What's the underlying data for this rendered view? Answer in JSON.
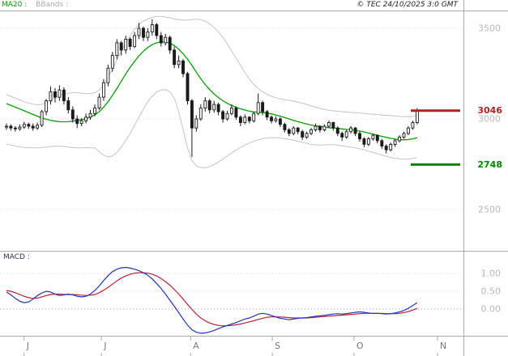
{
  "header": {
    "ma_label": "MA20 :",
    "bbands_label": "BBands :",
    "copyright": "© TEC 24/10/2025 3:0 GMT"
  },
  "macd_panel_label": "MACD :",
  "colors": {
    "ma20": "#00A000",
    "bband": "#C4C4C4",
    "candle": "#1A1A1A",
    "macd_line": "#2233BB",
    "macd_signal": "#BB2233",
    "grid": "#DDDDDD",
    "grid_zero": "#9999BB",
    "border": "#AAAAAA",
    "tick_label": "#B8B8B8",
    "month_label": "#777777"
  },
  "chart_data": {
    "type": "candlestick",
    "title": "",
    "legend": [
      "MA20",
      "BBands",
      "MACD"
    ],
    "price_axis": {
      "ticks": [
        {
          "label": "3500",
          "value": 3500
        },
        {
          "label": "3000",
          "value": 3000
        },
        {
          "label": "2500",
          "value": 2500
        }
      ],
      "range": [
        2270,
        3595
      ]
    },
    "macd_axis": {
      "ticks": [
        {
          "label": "1.00",
          "value": 1.0
        },
        {
          "label": "0.50",
          "value": 0.5
        },
        {
          "label": "0.00",
          "value": 0.0
        }
      ],
      "range": [
        -0.75,
        1.65
      ]
    },
    "x_axis": {
      "month_labels": [
        {
          "label": "J",
          "index": 4
        },
        {
          "label": "J",
          "index": 21.5
        },
        {
          "label": "A",
          "index": 41.7
        },
        {
          "label": "S",
          "index": 60.2
        },
        {
          "label": "O",
          "index": 78.7
        },
        {
          "label": "N",
          "index": 97.6
        }
      ]
    },
    "levels": [
      {
        "label": "3046",
        "value": 3046,
        "color": "#B22222"
      },
      {
        "label": "2748",
        "value": 2748,
        "color": "#008800"
      }
    ],
    "series": {
      "candles_ohlc": [
        [
          2955,
          2975,
          2940,
          2960
        ],
        [
          2960,
          2970,
          2935,
          2950
        ],
        [
          2950,
          2960,
          2930,
          2945
        ],
        [
          2945,
          2970,
          2935,
          2955
        ],
        [
          2955,
          2985,
          2945,
          2970
        ],
        [
          2970,
          2980,
          2945,
          2960
        ],
        [
          2960,
          2975,
          2935,
          2950
        ],
        [
          2950,
          2980,
          2940,
          2965
        ],
        [
          2965,
          3050,
          2955,
          3040
        ],
        [
          3040,
          3110,
          3020,
          3100
        ],
        [
          3100,
          3180,
          3080,
          3150
        ],
        [
          3150,
          3170,
          3090,
          3120
        ],
        [
          3120,
          3185,
          3100,
          3160
        ],
        [
          3160,
          3175,
          3080,
          3100
        ],
        [
          3100,
          3120,
          3030,
          3050
        ],
        [
          3050,
          3070,
          2980,
          3000
        ],
        [
          3000,
          3020,
          2950,
          2975
        ],
        [
          2975,
          3005,
          2960,
          2990
        ],
        [
          2990,
          3030,
          2975,
          3010
        ],
        [
          3010,
          3050,
          2995,
          3030
        ],
        [
          3030,
          3080,
          3015,
          3060
        ],
        [
          3060,
          3140,
          3050,
          3120
        ],
        [
          3120,
          3220,
          3100,
          3200
        ],
        [
          3200,
          3300,
          3180,
          3280
        ],
        [
          3280,
          3370,
          3260,
          3350
        ],
        [
          3350,
          3440,
          3330,
          3420
        ],
        [
          3420,
          3430,
          3350,
          3380
        ],
        [
          3380,
          3460,
          3360,
          3440
        ],
        [
          3440,
          3450,
          3380,
          3400
        ],
        [
          3400,
          3480,
          3390,
          3460
        ],
        [
          3460,
          3530,
          3440,
          3500
        ],
        [
          3500,
          3510,
          3430,
          3450
        ],
        [
          3450,
          3500,
          3430,
          3480
        ],
        [
          3480,
          3550,
          3460,
          3520
        ],
        [
          3520,
          3530,
          3440,
          3460
        ],
        [
          3460,
          3480,
          3400,
          3420
        ],
        [
          3420,
          3470,
          3405,
          3450
        ],
        [
          3450,
          3460,
          3360,
          3380
        ],
        [
          3380,
          3400,
          3280,
          3300
        ],
        [
          3300,
          3350,
          3280,
          3320
        ],
        [
          3320,
          3330,
          3230,
          3250
        ],
        [
          3250,
          3260,
          3080,
          3100
        ],
        [
          3100,
          3110,
          2790,
          2950
        ],
        [
          2950,
          3020,
          2930,
          3000
        ],
        [
          3000,
          3080,
          2990,
          3060
        ],
        [
          3060,
          3120,
          3040,
          3100
        ],
        [
          3100,
          3110,
          3030,
          3050
        ],
        [
          3050,
          3100,
          3035,
          3080
        ],
        [
          3080,
          3090,
          3020,
          3040
        ],
        [
          3040,
          3050,
          2980,
          3000
        ],
        [
          3000,
          3045,
          2990,
          3030
        ],
        [
          3030,
          3080,
          3020,
          3060
        ],
        [
          3060,
          3070,
          2995,
          3010
        ],
        [
          3010,
          3020,
          2960,
          2980
        ],
        [
          2980,
          3025,
          2970,
          3010
        ],
        [
          3010,
          3015,
          2975,
          2990
        ],
        [
          2990,
          3040,
          2980,
          3030
        ],
        [
          3030,
          3140,
          3020,
          3090
        ],
        [
          3090,
          3100,
          3020,
          3040
        ],
        [
          3040,
          3050,
          2995,
          3010
        ],
        [
          3010,
          3020,
          2975,
          2990
        ],
        [
          2990,
          3015,
          2980,
          3000
        ],
        [
          3000,
          3010,
          2955,
          2970
        ],
        [
          2970,
          2980,
          2925,
          2940
        ],
        [
          2940,
          2950,
          2905,
          2920
        ],
        [
          2920,
          2960,
          2910,
          2950
        ],
        [
          2950,
          2955,
          2915,
          2930
        ],
        [
          2930,
          2940,
          2885,
          2900
        ],
        [
          2900,
          2930,
          2890,
          2920
        ],
        [
          2920,
          2950,
          2910,
          2940
        ],
        [
          2940,
          2975,
          2930,
          2960
        ],
        [
          2960,
          2965,
          2925,
          2940
        ],
        [
          2940,
          2970,
          2930,
          2960
        ],
        [
          2960,
          2990,
          2950,
          2980
        ],
        [
          2980,
          2985,
          2935,
          2950
        ],
        [
          2950,
          2960,
          2905,
          2920
        ],
        [
          2920,
          2930,
          2880,
          2900
        ],
        [
          2900,
          2940,
          2890,
          2930
        ],
        [
          2930,
          2960,
          2920,
          2950
        ],
        [
          2950,
          2955,
          2905,
          2920
        ],
        [
          2920,
          2930,
          2875,
          2890
        ],
        [
          2890,
          2900,
          2845,
          2860
        ],
        [
          2860,
          2900,
          2850,
          2890
        ],
        [
          2890,
          2920,
          2880,
          2910
        ],
        [
          2910,
          2915,
          2865,
          2880
        ],
        [
          2880,
          2890,
          2835,
          2850
        ],
        [
          2850,
          2860,
          2810,
          2830
        ],
        [
          2830,
          2870,
          2820,
          2860
        ],
        [
          2860,
          2890,
          2845,
          2880
        ],
        [
          2880,
          2910,
          2870,
          2900
        ],
        [
          2900,
          2930,
          2890,
          2920
        ],
        [
          2920,
          2960,
          2910,
          2950
        ],
        [
          2950,
          2990,
          2940,
          2980
        ],
        [
          2980,
          3060,
          2970,
          3045
        ]
      ],
      "ma20": [
        3085,
        3075,
        3065,
        3055,
        3045,
        3035,
        3025,
        3015,
        3005,
        2998,
        2992,
        2988,
        2985,
        2984,
        2985,
        2988,
        2992,
        2996,
        3002,
        3010,
        3022,
        3040,
        3065,
        3095,
        3130,
        3168,
        3208,
        3248,
        3285,
        3318,
        3348,
        3374,
        3394,
        3410,
        3420,
        3425,
        3424,
        3418,
        3405,
        3385,
        3360,
        3330,
        3295,
        3258,
        3222,
        3190,
        3162,
        3138,
        3118,
        3100,
        3086,
        3074,
        3064,
        3056,
        3049,
        3043,
        3039,
        3037,
        3035,
        3032,
        3028,
        3022,
        3015,
        3008,
        3000,
        2992,
        2985,
        2978,
        2972,
        2966,
        2962,
        2958,
        2955,
        2952,
        2950,
        2948,
        2945,
        2942,
        2940,
        2937,
        2933,
        2928,
        2922,
        2916,
        2910,
        2904,
        2898,
        2893,
        2889,
        2886,
        2885,
        2886,
        2890,
        2896
      ],
      "bb_upper": [
        3135,
        3125,
        3115,
        3105,
        3095,
        3088,
        3082,
        3078,
        3080,
        3090,
        3105,
        3118,
        3130,
        3138,
        3142,
        3145,
        3145,
        3142,
        3140,
        3140,
        3145,
        3160,
        3190,
        3230,
        3275,
        3325,
        3375,
        3420,
        3460,
        3495,
        3520,
        3540,
        3552,
        3560,
        3565,
        3565,
        3562,
        3558,
        3552,
        3548,
        3545,
        3545,
        3548,
        3550,
        3548,
        3540,
        3525,
        3505,
        3480,
        3450,
        3415,
        3375,
        3335,
        3295,
        3255,
        3220,
        3190,
        3168,
        3150,
        3136,
        3125,
        3117,
        3111,
        3106,
        3102,
        3098,
        3093,
        3087,
        3080,
        3072,
        3065,
        3058,
        3052,
        3048,
        3045,
        3042,
        3040,
        3038,
        3036,
        3034,
        3032,
        3030,
        3028,
        3026,
        3024,
        3022,
        3020,
        3018,
        3016,
        3014,
        3012,
        3012,
        3014,
        3020
      ],
      "bb_lower": [
        2862,
        2856,
        2850,
        2846,
        2843,
        2841,
        2840,
        2840,
        2842,
        2845,
        2848,
        2850,
        2850,
        2848,
        2845,
        2842,
        2840,
        2840,
        2841,
        2841,
        2840,
        2820,
        2800,
        2790,
        2795,
        2815,
        2845,
        2880,
        2920,
        2965,
        3010,
        3055,
        3095,
        3125,
        3148,
        3160,
        3162,
        3150,
        3115,
        3040,
        2940,
        2840,
        2770,
        2740,
        2732,
        2730,
        2736,
        2748,
        2762,
        2778,
        2795,
        2812,
        2828,
        2843,
        2856,
        2867,
        2877,
        2885,
        2891,
        2895,
        2897,
        2897,
        2895,
        2892,
        2888,
        2883,
        2877,
        2871,
        2865,
        2860,
        2857,
        2856,
        2857,
        2858,
        2858,
        2856,
        2852,
        2848,
        2844,
        2840,
        2835,
        2829,
        2822,
        2815,
        2808,
        2801,
        2794,
        2788,
        2783,
        2780,
        2778,
        2779,
        2782,
        2788
      ],
      "macd": [
        0.48,
        0.4,
        0.3,
        0.22,
        0.18,
        0.2,
        0.28,
        0.38,
        0.45,
        0.5,
        0.48,
        0.42,
        0.38,
        0.4,
        0.42,
        0.4,
        0.36,
        0.34,
        0.36,
        0.42,
        0.52,
        0.65,
        0.8,
        0.94,
        1.05,
        1.12,
        1.16,
        1.17,
        1.15,
        1.12,
        1.08,
        1.02,
        0.95,
        0.85,
        0.72,
        0.58,
        0.42,
        0.25,
        0.08,
        -0.1,
        -0.28,
        -0.45,
        -0.58,
        -0.65,
        -0.68,
        -0.67,
        -0.64,
        -0.6,
        -0.55,
        -0.5,
        -0.46,
        -0.42,
        -0.38,
        -0.33,
        -0.28,
        -0.25,
        -0.2,
        -0.14,
        -0.12,
        -0.14,
        -0.18,
        -0.22,
        -0.26,
        -0.28,
        -0.3,
        -0.28,
        -0.26,
        -0.25,
        -0.24,
        -0.22,
        -0.2,
        -0.19,
        -0.18,
        -0.16,
        -0.14,
        -0.13,
        -0.14,
        -0.13,
        -0.11,
        -0.09,
        -0.08,
        -0.09,
        -0.11,
        -0.12,
        -0.12,
        -0.13,
        -0.14,
        -0.13,
        -0.11,
        -0.08,
        -0.04,
        0.02,
        0.1,
        0.18
      ],
      "macd_signal": [
        0.52,
        0.5,
        0.46,
        0.41,
        0.36,
        0.32,
        0.3,
        0.31,
        0.34,
        0.38,
        0.41,
        0.42,
        0.42,
        0.41,
        0.41,
        0.41,
        0.4,
        0.39,
        0.38,
        0.39,
        0.41,
        0.46,
        0.53,
        0.61,
        0.7,
        0.79,
        0.87,
        0.93,
        0.98,
        1.01,
        1.02,
        1.02,
        1.01,
        0.98,
        0.93,
        0.86,
        0.77,
        0.67,
        0.55,
        0.42,
        0.28,
        0.13,
        -0.01,
        -0.14,
        -0.25,
        -0.33,
        -0.39,
        -0.43,
        -0.46,
        -0.47,
        -0.47,
        -0.46,
        -0.44,
        -0.42,
        -0.39,
        -0.36,
        -0.33,
        -0.29,
        -0.26,
        -0.23,
        -0.22,
        -0.22,
        -0.22,
        -0.23,
        -0.24,
        -0.25,
        -0.25,
        -0.25,
        -0.25,
        -0.24,
        -0.23,
        -0.22,
        -0.21,
        -0.2,
        -0.19,
        -0.18,
        -0.17,
        -0.16,
        -0.15,
        -0.14,
        -0.13,
        -0.12,
        -0.12,
        -0.12,
        -0.12,
        -0.12,
        -0.13,
        -0.13,
        -0.13,
        -0.12,
        -0.1,
        -0.07,
        -0.03,
        0.02
      ]
    }
  }
}
